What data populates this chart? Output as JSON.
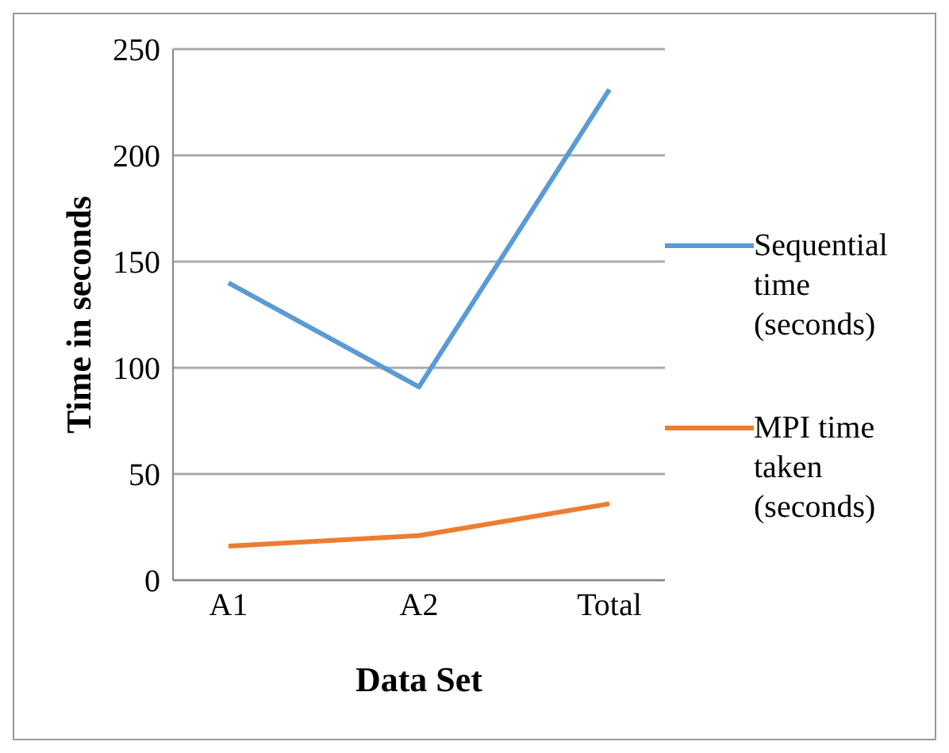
{
  "chart_data": {
    "type": "line",
    "categories": [
      "A1",
      "A2",
      "Total"
    ],
    "xlabel": "Data Set",
    "ylabel": "Time in seconds",
    "series": [
      {
        "name": "Sequential time (seconds)",
        "color": "#5b9bd5",
        "values": [
          140,
          91,
          231
        ]
      },
      {
        "name": "MPI time taken (seconds)",
        "color": "#ed7d31",
        "values": [
          16,
          21,
          36
        ]
      }
    ],
    "ylim": [
      0,
      250
    ],
    "yticks": [
      0,
      50,
      100,
      150,
      200,
      250
    ],
    "grid": "y",
    "legend": "right",
    "marker": "none"
  }
}
